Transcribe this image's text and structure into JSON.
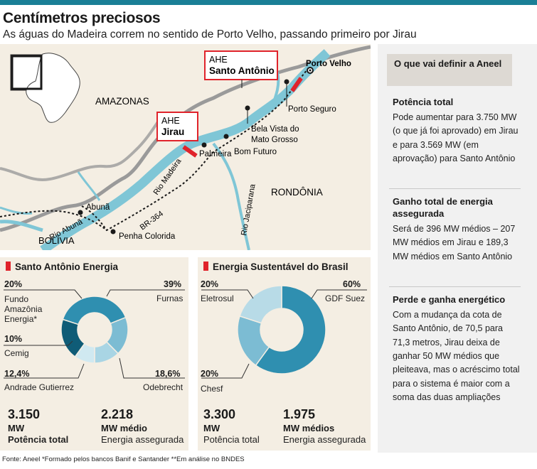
{
  "header": {
    "title": "Centímetros preciosos",
    "subtitle": "As águas do Madeira correm no sentido de Porto Velho, passando primeiro por Jirau"
  },
  "map": {
    "regions": [
      "AMAZONAS",
      "RONDÔNIA",
      "BOLÍVIA"
    ],
    "plants": [
      {
        "prefix": "AHE",
        "name": "Santo Antônio"
      },
      {
        "prefix": "AHE",
        "name": "Jirau"
      }
    ],
    "places": [
      "Porto Velho",
      "Porto Seguro",
      "Bela Vista do",
      "Mato Grosso",
      "Bom Futuro",
      "Palmeira",
      "Abunã",
      "Penha Colorida"
    ],
    "rivers": [
      "Rio Madeira",
      "Rio Abunã",
      "Rio Jaciparana"
    ],
    "road": "BR-364",
    "colors": {
      "land": "#f4eee3",
      "river": "#7fc6d6",
      "border": "#9a9a9a",
      "plant": "#e0232b"
    }
  },
  "santo_antonio": {
    "title": "Santo Antônio Energia",
    "shares": [
      {
        "pct": "20%",
        "label": [
          "Fundo",
          "Amazônia",
          "Energia*"
        ],
        "value": 20,
        "color": "#0f5c77"
      },
      {
        "pct": "39%",
        "label": [
          "Furnas"
        ],
        "value": 39,
        "color": "#2f8fb0"
      },
      {
        "pct": "18,6%",
        "label": [
          "Odebrecht"
        ],
        "value": 18.6,
        "color": "#7cbcd3"
      },
      {
        "pct": "12,4%",
        "label": [
          "Andrade Gutierrez"
        ],
        "value": 12.4,
        "color": "#a9d5e4"
      },
      {
        "pct": "10%",
        "label": [
          "Cemig"
        ],
        "value": 10,
        "color": "#d0e9f1"
      }
    ],
    "power_value": "3.150",
    "power_unit": "MW",
    "power_label": "Potência total",
    "energy_value": "2.218",
    "energy_unit": "MW médio",
    "energy_label": "Energia assegurada"
  },
  "sustentavel": {
    "title": "Energia Sustentável do Brasil",
    "shares": [
      {
        "pct": "60%",
        "label": [
          "GDF Suez"
        ],
        "value": 60,
        "color": "#2f8fb0"
      },
      {
        "pct": "20%",
        "label": [
          "Chesf"
        ],
        "value": 20,
        "color": "#7cbcd3"
      },
      {
        "pct": "20%",
        "label": [
          "Eletrosul"
        ],
        "value": 20,
        "color": "#b8dbe7"
      }
    ],
    "power_value": "3.300",
    "power_unit": "MW",
    "power_label": "Potência total",
    "energy_value": "1.975",
    "energy_unit": "MW médios",
    "energy_label": "Energia assegurada"
  },
  "sidebar": {
    "heading": "O que vai definir a Aneel",
    "sections": [
      {
        "title": "Potência total",
        "text": "Pode aumentar para 3.750 MW (o que já foi aprovado) em Jirau e para 3.569 MW (em aprovação) para Santo Antônio"
      },
      {
        "title": "Ganho total de energia assegurada",
        "text": "Será de 396 MW médios – 207 MW médios em Jirau e 189,3 MW médios em Santo Antônio"
      },
      {
        "title": "Perde e ganha energético",
        "text": "Com a mudança da cota de Santo Antônio, de 70,5 para 71,3 metros, Jirau deixa de ganhar 50 MW médios que pleiteava, mas o acréscimo total para o sistema é maior com a soma das duas ampliações"
      }
    ]
  },
  "footer": {
    "source": "Fonte: Aneel    *Formado pelos bancos Banif e Santander    **Em análise no BNDES"
  }
}
